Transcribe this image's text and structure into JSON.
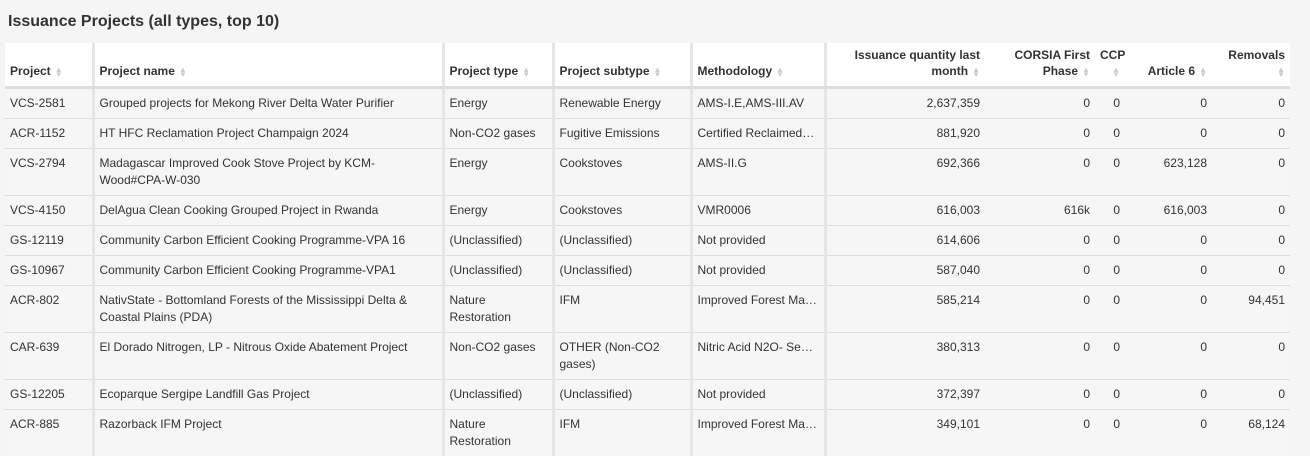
{
  "title": "Issuance Projects (all types, top 10)",
  "columns": [
    "Project",
    "Project name",
    "Project type",
    "Project subtype",
    "Methodology",
    "Issuance quantity last month",
    "CORSIA First Phase",
    "CCP",
    "Article 6",
    "Removals"
  ],
  "rows": [
    [
      "VCS-2581",
      "Grouped projects for Mekong River Delta Water Purifier",
      "Energy",
      "Renewable Energy",
      "AMS-I.E,AMS-III.AV",
      "2,637,359",
      "0",
      "0",
      "0",
      "0"
    ],
    [
      "ACR-1152",
      "HT HFC Reclamation Project Champaign 2024",
      "Non-CO2 gases",
      "Fugitive Emissions",
      "Certified Reclaimed…",
      "881,920",
      "0",
      "0",
      "0",
      "0"
    ],
    [
      "VCS-2794",
      "Madagascar Improved Cook Stove Project by KCM-Wood#CPA-W-030",
      "Energy",
      "Cookstoves",
      "AMS-II.G",
      "692,366",
      "0",
      "0",
      "623,128",
      "0"
    ],
    [
      "VCS-4150",
      "DelAgua Clean Cooking Grouped Project in Rwanda",
      "Energy",
      "Cookstoves",
      "VMR0006",
      "616,003",
      "616k",
      "0",
      "616,003",
      "0"
    ],
    [
      "GS-12119",
      "Community Carbon Efficient Cooking Programme-VPA 16",
      "(Unclassified)",
      "(Unclassified)",
      "Not provided",
      "614,606",
      "0",
      "0",
      "0",
      "0"
    ],
    [
      "GS-10967",
      "Community Carbon Efficient Cooking Programme-VPA1",
      "(Unclassified)",
      "(Unclassified)",
      "Not provided",
      "587,040",
      "0",
      "0",
      "0",
      "0"
    ],
    [
      "ACR-802",
      "NativState - Bottomland Forests of the Mississippi Delta & Coastal Plains (PDA)",
      "Nature Restoration",
      "IFM",
      "Improved Forest Ma…",
      "585,214",
      "0",
      "0",
      "0",
      "94,451"
    ],
    [
      "CAR-639",
      "El Dorado Nitrogen, LP - Nitrous Oxide Abatement Project",
      "Non-CO2 gases",
      "OTHER (Non-CO2 gases)",
      "Nitric Acid N2O- Se…",
      "380,313",
      "0",
      "0",
      "0",
      "0"
    ],
    [
      "GS-12205",
      "Ecoparque Sergipe Landfill Gas Project",
      "(Unclassified)",
      "(Unclassified)",
      "Not provided",
      "372,397",
      "0",
      "0",
      "0",
      "0"
    ],
    [
      "ACR-885",
      "Razorback IFM Project",
      "Nature Restoration",
      "IFM",
      "Improved Forest Ma…",
      "349,101",
      "0",
      "0",
      "0",
      "68,124"
    ]
  ]
}
